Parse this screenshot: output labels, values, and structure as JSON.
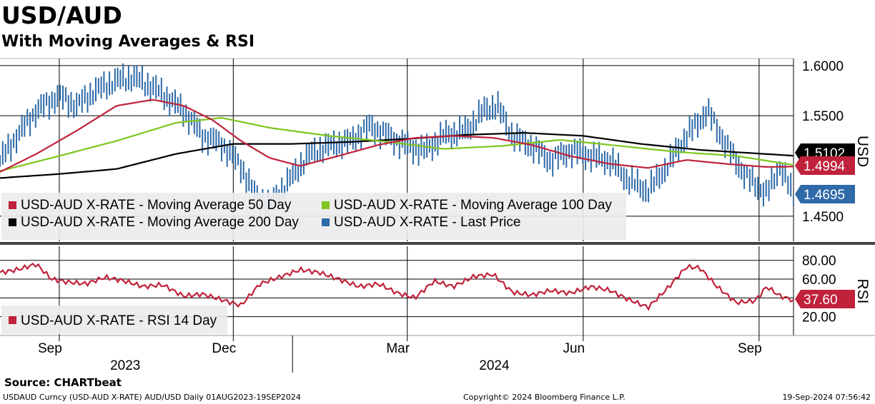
{
  "title": "USD/AUD",
  "subtitle": "With Moving Averages & RSI",
  "source": "Source: CHARTbeat",
  "footer": {
    "left": "USDAUD Curncy (USD-AUD X-RATE) AUD/USD  Daily 01AUG2023-19SEP2024",
    "middle": "Copyright© 2024 Bloomberg Finance L.P.",
    "right": "19-Sep-2024 07:56:42"
  },
  "colors": {
    "last_price": "#2e6aa8",
    "ma50": "#c0223b",
    "ma100": "#7ec61e",
    "ma200": "#000000",
    "rsi": "#c0223b",
    "legend_bg": "#ececec"
  },
  "chart_data": [
    {
      "type": "line",
      "ylabel": "USD",
      "ylim": [
        1.425,
        1.607
      ],
      "yticks": [
        "1.6000",
        "1.5500",
        "1.4500"
      ],
      "ytick_values": [
        1.6,
        1.55,
        1.45
      ],
      "xtick_labels": [
        "Sep",
        "Dec",
        "Mar",
        "Jun",
        "Sep"
      ],
      "xtick_dates": [
        "2023-09-01",
        "2023-12-01",
        "2024-03-01",
        "2024-06-01",
        "2024-09-01"
      ],
      "year_labels": [
        "2023",
        "2024"
      ],
      "date_range": [
        "2023-08-01",
        "2024-09-19"
      ],
      "legend_placement": "bottom-left",
      "grid": true,
      "end_labels": [
        {
          "series": "USD-AUD X-RATE - Moving Average 200 Day",
          "text": "1.5102",
          "value": 1.5102
        },
        {
          "series": "USD-AUD X-RATE - Moving Average 50 Day",
          "text": "1.4994",
          "value": 1.4994
        },
        {
          "series": "USD-AUD X-RATE - Last Price",
          "text": "1.4695",
          "value": 1.4695
        }
      ],
      "series": [
        {
          "name": "USD-AUD X-RATE - Moving Average 50 Day",
          "color": "#c0223b",
          "x": [
            "2023-08-01",
            "2023-08-20",
            "2023-09-10",
            "2023-10-01",
            "2023-10-20",
            "2023-11-05",
            "2023-11-20",
            "2023-12-05",
            "2023-12-20",
            "2024-01-05",
            "2024-01-25",
            "2024-02-15",
            "2024-03-05",
            "2024-03-25",
            "2024-04-15",
            "2024-05-05",
            "2024-05-25",
            "2024-06-15",
            "2024-07-05",
            "2024-07-25",
            "2024-08-15",
            "2024-09-05",
            "2024-09-19"
          ],
          "y": [
            1.494,
            1.512,
            1.535,
            1.56,
            1.566,
            1.56,
            1.546,
            1.525,
            1.508,
            1.5,
            1.51,
            1.521,
            1.528,
            1.53,
            1.528,
            1.521,
            1.51,
            1.502,
            1.498,
            1.506,
            1.502,
            1.499,
            1.4994
          ]
        },
        {
          "name": "USD-AUD X-RATE - Moving Average 100 Day",
          "color": "#7ec61e",
          "x": [
            "2023-08-01",
            "2023-09-01",
            "2023-10-01",
            "2023-11-01",
            "2023-11-25",
            "2023-12-20",
            "2024-01-20",
            "2024-02-20",
            "2024-03-20",
            "2024-04-20",
            "2024-05-20",
            "2024-06-20",
            "2024-07-20",
            "2024-08-20",
            "2024-09-19"
          ],
          "y": [
            1.495,
            1.51,
            1.525,
            1.543,
            1.548,
            1.538,
            1.53,
            1.524,
            1.517,
            1.52,
            1.526,
            1.52,
            1.514,
            1.51,
            1.501
          ]
        },
        {
          "name": "USD-AUD X-RATE - Moving Average 200 Day",
          "color": "#000000",
          "x": [
            "2023-08-01",
            "2023-09-01",
            "2023-10-01",
            "2023-11-01",
            "2023-12-01",
            "2024-01-01",
            "2024-02-01",
            "2024-03-01",
            "2024-04-01",
            "2024-05-01",
            "2024-06-01",
            "2024-07-01",
            "2024-08-01",
            "2024-09-19"
          ],
          "y": [
            1.488,
            1.492,
            1.497,
            1.512,
            1.522,
            1.522,
            1.524,
            1.527,
            1.531,
            1.533,
            1.53,
            1.522,
            1.516,
            1.5102
          ]
        },
        {
          "name": "USD-AUD X-RATE - Last Price",
          "color": "#2e6aa8",
          "x": [
            "2023-08-01",
            "2023-08-10",
            "2023-08-20",
            "2023-09-01",
            "2023-09-10",
            "2023-09-20",
            "2023-10-01",
            "2023-10-10",
            "2023-10-20",
            "2023-10-26",
            "2023-11-05",
            "2023-11-15",
            "2023-11-25",
            "2023-12-05",
            "2023-12-12",
            "2023-12-20",
            "2024-01-01",
            "2024-01-10",
            "2024-01-20",
            "2024-02-01",
            "2024-02-10",
            "2024-02-20",
            "2024-03-01",
            "2024-03-10",
            "2024-03-20",
            "2024-04-01",
            "2024-04-10",
            "2024-04-17",
            "2024-04-25",
            "2024-05-05",
            "2024-05-15",
            "2024-05-25",
            "2024-06-05",
            "2024-06-15",
            "2024-06-25",
            "2024-07-05",
            "2024-07-15",
            "2024-07-25",
            "2024-08-01",
            "2024-08-05",
            "2024-08-15",
            "2024-08-25",
            "2024-09-05",
            "2024-09-12",
            "2024-09-19"
          ],
          "y": [
            1.505,
            1.53,
            1.555,
            1.57,
            1.56,
            1.575,
            1.585,
            1.588,
            1.578,
            1.57,
            1.555,
            1.53,
            1.522,
            1.5,
            1.472,
            1.46,
            1.49,
            1.512,
            1.52,
            1.525,
            1.54,
            1.53,
            1.52,
            1.515,
            1.53,
            1.535,
            1.555,
            1.56,
            1.53,
            1.52,
            1.505,
            1.515,
            1.51,
            1.505,
            1.485,
            1.475,
            1.5,
            1.53,
            1.545,
            1.555,
            1.52,
            1.49,
            1.472,
            1.5,
            1.4695
          ]
        }
      ]
    },
    {
      "type": "line",
      "ylabel": "RSI",
      "ylim": [
        0,
        95
      ],
      "yticks": [
        "80.00",
        "60.00",
        "20.00"
      ],
      "ytick_values": [
        80,
        60,
        20
      ],
      "legend_placement": "bottom-left",
      "grid": true,
      "end_labels": [
        {
          "series": "USD-AUD X-RATE - RSI 14 Day",
          "text": "37.60",
          "value": 37.6
        }
      ],
      "series": [
        {
          "name": "USD-AUD X-RATE - RSI 14 Day",
          "color": "#c0223b",
          "x": [
            "2023-08-01",
            "2023-08-10",
            "2023-08-20",
            "2023-08-28",
            "2023-09-05",
            "2023-09-15",
            "2023-09-25",
            "2023-10-05",
            "2023-10-15",
            "2023-10-25",
            "2023-11-05",
            "2023-11-15",
            "2023-11-25",
            "2023-12-05",
            "2023-12-15",
            "2023-12-25",
            "2024-01-05",
            "2024-01-15",
            "2024-01-25",
            "2024-02-05",
            "2024-02-15",
            "2024-02-25",
            "2024-03-05",
            "2024-03-15",
            "2024-03-25",
            "2024-04-05",
            "2024-04-15",
            "2024-04-25",
            "2024-05-05",
            "2024-05-15",
            "2024-05-25",
            "2024-06-05",
            "2024-06-15",
            "2024-06-25",
            "2024-07-05",
            "2024-07-15",
            "2024-07-25",
            "2024-08-01",
            "2024-08-10",
            "2024-08-20",
            "2024-08-30",
            "2024-09-05",
            "2024-09-12",
            "2024-09-19"
          ],
          "y": [
            67,
            70,
            76,
            60,
            57,
            55,
            62,
            58,
            52,
            54,
            42,
            44,
            38,
            32,
            55,
            62,
            70,
            67,
            60,
            52,
            55,
            45,
            40,
            58,
            52,
            63,
            65,
            46,
            43,
            48,
            45,
            52,
            48,
            38,
            30,
            50,
            73,
            72,
            52,
            35,
            37,
            52,
            42,
            37.6
          ]
        }
      ]
    }
  ],
  "legends": {
    "price": [
      {
        "label": "USD-AUD X-RATE - Moving Average 50 Day",
        "color": "#c0223b"
      },
      {
        "label": "USD-AUD X-RATE - Moving Average 100 Day",
        "color": "#7ec61e"
      },
      {
        "label": "USD-AUD X-RATE - Moving Average 200 Day",
        "color": "#000000"
      },
      {
        "label": "USD-AUD X-RATE - Last Price",
        "color": "#2e6aa8"
      }
    ],
    "rsi": [
      {
        "label": "USD-AUD X-RATE - RSI 14 Day",
        "color": "#c0223b"
      }
    ]
  }
}
